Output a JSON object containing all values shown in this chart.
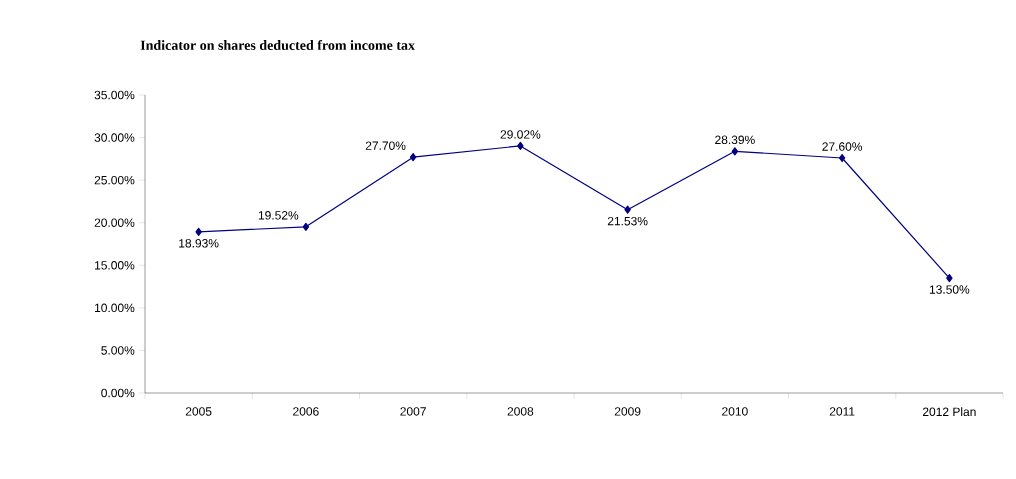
{
  "chart_data": {
    "type": "line",
    "title": "Indicator on shares deducted from income tax",
    "categories": [
      "2005",
      "2006",
      "2007",
      "2008",
      "2009",
      "2010",
      "2011",
      "2012 Plan"
    ],
    "values": [
      18.93,
      19.52,
      27.7,
      29.02,
      21.53,
      28.39,
      27.6,
      13.5
    ],
    "value_labels": [
      "18.93%",
      "19.52%",
      "27.70%",
      "29.02%",
      "21.53%",
      "28.39%",
      "27.60%",
      "13.50%"
    ],
    "color": "#000080",
    "marker": "diamond",
    "grid": false,
    "ylim": [
      0,
      35
    ],
    "yticks": [
      {
        "value": 0,
        "label": "0.00%"
      },
      {
        "value": 5,
        "label": "5.00%"
      },
      {
        "value": 10,
        "label": "10.00%"
      },
      {
        "value": 15,
        "label": "15.00%"
      },
      {
        "value": 20,
        "label": "20.00%"
      },
      {
        "value": 25,
        "label": "25.00%"
      },
      {
        "value": 30,
        "label": "30.00%"
      },
      {
        "value": 35,
        "label": "35.00%"
      }
    ]
  }
}
